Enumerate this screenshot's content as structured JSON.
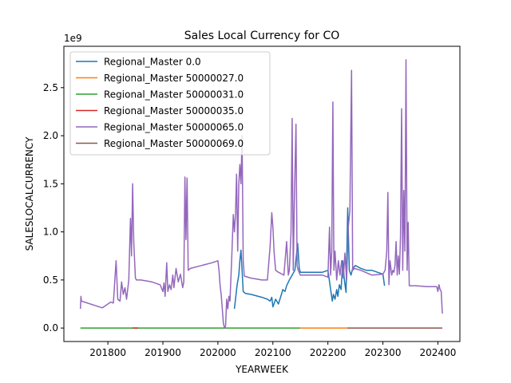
{
  "chart_data": {
    "type": "line",
    "title": "Sales Local Currency for CO",
    "xlabel": "YEARWEEK",
    "ylabel": "SALESLOCALCURRENCY",
    "y_offset_label": "1e9",
    "xlim": [
      201720,
      202440
    ],
    "ylim": [
      -0.14,
      2.93
    ],
    "x_ticks": [
      "201800",
      "201900",
      "202000",
      "202100",
      "202200",
      "202300",
      "202400"
    ],
    "y_ticks": [
      "0.0",
      "0.5",
      "1.0",
      "1.5",
      "2.0",
      "2.5"
    ],
    "legend_position": "upper left",
    "series": [
      {
        "name": "Regional_Master 0.0",
        "color": "#1f77b4",
        "points": [
          [
            202030,
            0.2
          ],
          [
            202035,
            0.45
          ],
          [
            202038,
            0.55
          ],
          [
            202040,
            0.7
          ],
          [
            202042,
            0.81
          ],
          [
            202044,
            0.6
          ],
          [
            202046,
            0.38
          ],
          [
            202050,
            0.36
          ],
          [
            202060,
            0.35
          ],
          [
            202080,
            0.32
          ],
          [
            202090,
            0.3
          ],
          [
            202095,
            0.28
          ],
          [
            202098,
            0.32
          ],
          [
            202100,
            0.22
          ],
          [
            202105,
            0.3
          ],
          [
            202110,
            0.25
          ],
          [
            202115,
            0.34
          ],
          [
            202118,
            0.4
          ],
          [
            202122,
            0.38
          ],
          [
            202125,
            0.44
          ],
          [
            202130,
            0.5
          ],
          [
            202135,
            0.55
          ],
          [
            202140,
            0.6
          ],
          [
            202145,
            0.88
          ],
          [
            202148,
            0.62
          ],
          [
            202150,
            0.58
          ],
          [
            202160,
            0.58
          ],
          [
            202170,
            0.58
          ],
          [
            202180,
            0.58
          ],
          [
            202190,
            0.58
          ],
          [
            202200,
            0.6
          ],
          [
            202205,
            0.4
          ],
          [
            202208,
            0.28
          ],
          [
            202210,
            0.35
          ],
          [
            202213,
            0.3
          ],
          [
            202216,
            0.4
          ],
          [
            202218,
            0.33
          ],
          [
            202221,
            0.45
          ],
          [
            202224,
            0.4
          ],
          [
            202227,
            0.7
          ],
          [
            202230,
            0.5
          ],
          [
            202233,
            0.37
          ],
          [
            202236,
            1.25
          ],
          [
            202239,
            0.6
          ],
          [
            202242,
            0.55
          ],
          [
            202245,
            0.62
          ],
          [
            202250,
            0.65
          ],
          [
            202260,
            0.62
          ],
          [
            202270,
            0.6
          ],
          [
            202280,
            0.6
          ],
          [
            202290,
            0.58
          ],
          [
            202300,
            0.56
          ],
          [
            202303,
            0.44
          ]
        ]
      },
      {
        "name": "Regional_Master 50000027.0",
        "color": "#ff7f0e",
        "points": [
          [
            202150,
            0.0
          ],
          [
            202235,
            0.0
          ]
        ]
      },
      {
        "name": "Regional_Master 50000031.0",
        "color": "#2ca02c",
        "points": [
          [
            201750,
            0.0
          ],
          [
            202150,
            0.0
          ]
        ]
      },
      {
        "name": "Regional_Master 50000035.0",
        "color": "#d62728",
        "points": [
          [
            201845,
            0.0
          ],
          [
            201855,
            0.0
          ]
        ]
      },
      {
        "name": "Regional_Master 50000065.0",
        "color": "#9467bd",
        "points": [
          [
            201750,
            0.2
          ],
          [
            201751,
            0.33
          ],
          [
            201752,
            0.28
          ],
          [
            201790,
            0.21
          ],
          [
            201800,
            0.25
          ],
          [
            201805,
            0.27
          ],
          [
            201810,
            0.26
          ],
          [
            201815,
            0.7
          ],
          [
            201818,
            0.3
          ],
          [
            201822,
            0.28
          ],
          [
            201825,
            0.48
          ],
          [
            201828,
            0.35
          ],
          [
            201831,
            0.42
          ],
          [
            201834,
            0.3
          ],
          [
            201838,
            0.5
          ],
          [
            201841,
            1.14
          ],
          [
            201843,
            0.75
          ],
          [
            201845,
            1.5
          ],
          [
            201847,
            0.9
          ],
          [
            201850,
            0.52
          ],
          [
            201852,
            0.5
          ],
          [
            201860,
            0.5
          ],
          [
            201880,
            0.48
          ],
          [
            201895,
            0.45
          ],
          [
            201900,
            0.38
          ],
          [
            201902,
            0.47
          ],
          [
            201904,
            0.33
          ],
          [
            201907,
            0.68
          ],
          [
            201909,
            0.38
          ],
          [
            201912,
            0.45
          ],
          [
            201915,
            0.4
          ],
          [
            201918,
            0.55
          ],
          [
            201920,
            0.42
          ],
          [
            201924,
            0.62
          ],
          [
            201928,
            0.48
          ],
          [
            201932,
            0.56
          ],
          [
            201936,
            0.42
          ],
          [
            201938,
            0.48
          ],
          [
            201940,
            1.57
          ],
          [
            201942,
            0.92
          ],
          [
            201944,
            1.56
          ],
          [
            201946,
            0.6
          ],
          [
            201950,
            0.62
          ],
          [
            201970,
            0.65
          ],
          [
            201990,
            0.68
          ],
          [
            202000,
            0.7
          ],
          [
            202002,
            0.6
          ],
          [
            202004,
            0.45
          ],
          [
            202006,
            0.35
          ],
          [
            202008,
            0.2
          ],
          [
            202010,
            0.05
          ],
          [
            202012,
            0.0
          ],
          [
            202014,
            0.02
          ],
          [
            202016,
            0.3
          ],
          [
            202018,
            0.2
          ],
          [
            202020,
            0.33
          ],
          [
            202022,
            0.28
          ],
          [
            202025,
            0.7
          ],
          [
            202028,
            1.18
          ],
          [
            202030,
            1.0
          ],
          [
            202032,
            1.18
          ],
          [
            202034,
            1.6
          ],
          [
            202036,
            0.8
          ],
          [
            202038,
            1.5
          ],
          [
            202040,
            1.7
          ],
          [
            202042,
            1.5
          ],
          [
            202044,
            2.0
          ],
          [
            202046,
            0.7
          ],
          [
            202048,
            0.54
          ],
          [
            202060,
            0.52
          ],
          [
            202080,
            0.5
          ],
          [
            202090,
            0.5
          ],
          [
            202095,
            0.85
          ],
          [
            202098,
            1.2
          ],
          [
            202100,
            1.05
          ],
          [
            202102,
            0.8
          ],
          [
            202105,
            0.6
          ],
          [
            202110,
            0.58
          ],
          [
            202120,
            0.55
          ],
          [
            202125,
            0.9
          ],
          [
            202128,
            0.55
          ],
          [
            202130,
            0.6
          ],
          [
            202133,
            1.0
          ],
          [
            202135,
            2.18
          ],
          [
            202137,
            0.6
          ],
          [
            202139,
            1.3
          ],
          [
            202142,
            2.12
          ],
          [
            202144,
            0.65
          ],
          [
            202146,
            0.6
          ],
          [
            202150,
            0.55
          ],
          [
            202160,
            0.55
          ],
          [
            202175,
            0.55
          ],
          [
            202190,
            0.55
          ],
          [
            202200,
            0.53
          ],
          [
            202203,
            1.05
          ],
          [
            202205,
            0.55
          ],
          [
            202207,
            0.8
          ],
          [
            202209,
            2.35
          ],
          [
            202211,
            0.6
          ],
          [
            202213,
            0.8
          ],
          [
            202216,
            0.5
          ],
          [
            202219,
            0.7
          ],
          [
            202222,
            0.55
          ],
          [
            202225,
            0.7
          ],
          [
            202228,
            0.52
          ],
          [
            202231,
            0.78
          ],
          [
            202234,
            0.5
          ],
          [
            202237,
            1.05
          ],
          [
            202240,
            1.22
          ],
          [
            202243,
            2.68
          ],
          [
            202245,
            0.6
          ],
          [
            202248,
            0.62
          ],
          [
            202260,
            0.6
          ],
          [
            202280,
            0.55
          ],
          [
            202300,
            0.56
          ],
          [
            202304,
            0.6
          ],
          [
            202307,
            0.8
          ],
          [
            202309,
            1.41
          ],
          [
            202311,
            0.45
          ],
          [
            202313,
            0.7
          ],
          [
            202316,
            0.55
          ],
          [
            202318,
            0.6
          ],
          [
            202320,
            0.58
          ],
          [
            202322,
            0.65
          ],
          [
            202324,
            0.9
          ],
          [
            202326,
            0.55
          ],
          [
            202328,
            0.75
          ],
          [
            202330,
            0.56
          ],
          [
            202332,
            0.95
          ],
          [
            202334,
            2.28
          ],
          [
            202336,
            0.6
          ],
          [
            202338,
            1.43
          ],
          [
            202340,
            0.8
          ],
          [
            202342,
            2.79
          ],
          [
            202344,
            0.6
          ],
          [
            202346,
            1.1
          ],
          [
            202348,
            0.44
          ],
          [
            202360,
            0.44
          ],
          [
            202380,
            0.43
          ],
          [
            202398,
            0.43
          ],
          [
            202400,
            0.38
          ],
          [
            202402,
            0.45
          ],
          [
            202404,
            0.4
          ],
          [
            202406,
            0.38
          ],
          [
            202408,
            0.15
          ]
        ]
      },
      {
        "name": "Regional_Master 50000069.0",
        "color": "#8c564b",
        "points": [
          [
            202235,
            0.0
          ],
          [
            202408,
            0.0
          ]
        ]
      }
    ]
  }
}
